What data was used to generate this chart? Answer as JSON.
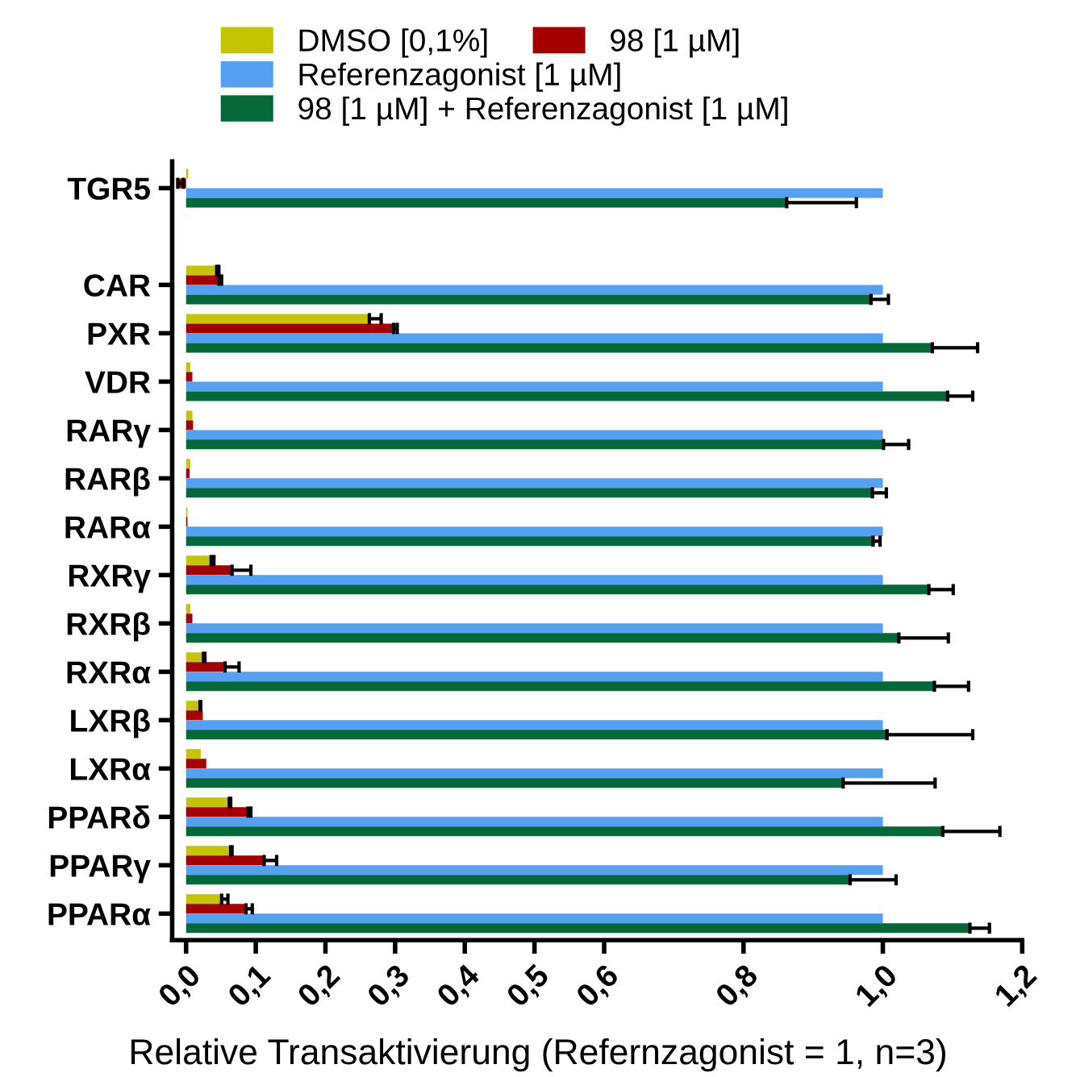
{
  "chart_data": {
    "type": "bar",
    "orientation": "horizontal",
    "legend": "top",
    "xlabel": "Relative Transaktivierung (Refernzagonist = 1, n=3)",
    "categories": [
      "TGR5",
      null,
      "CAR",
      "PXR",
      "VDR",
      "RARγ",
      "RARβ",
      "RARα",
      "RXRγ",
      "RXRβ",
      "RXRα",
      "LXRβ",
      "LXRα",
      "PPARδ",
      "PPARγ",
      "PPARα"
    ],
    "xlim": [
      -0.02,
      1.2
    ],
    "xticks": [
      {
        "value": 0,
        "label": "0,0"
      },
      {
        "value": 0.1,
        "label": "0,1"
      },
      {
        "value": 0.2,
        "label": "0,2"
      },
      {
        "value": 0.3,
        "label": "0,3"
      },
      {
        "value": 0.4,
        "label": "0,4"
      },
      {
        "value": 0.5,
        "label": "0,5"
      },
      {
        "value": 0.6,
        "label": "0,6"
      },
      {
        "value": 0.8,
        "label": "0,8"
      },
      {
        "value": 1.0,
        "label": "1,0"
      },
      {
        "value": 1.2,
        "label": "1,2"
      }
    ],
    "series": [
      {
        "name": "DMSO [0,1%]",
        "color": "#c4c400",
        "values": [
          0.003,
          null,
          0.044,
          0.263,
          0.006,
          0.009,
          0.006,
          0.002,
          0.036,
          0.006,
          0.025,
          0.02,
          0.021,
          0.062,
          0.064,
          0.051
        ],
        "errors": [
          null,
          null,
          [
            0.044,
            0.047
          ],
          [
            0.263,
            0.28
          ],
          null,
          null,
          null,
          null,
          [
            0.036,
            0.04
          ],
          null,
          [
            0.025,
            0.027
          ],
          [
            0.02,
            0.021
          ],
          null,
          [
            0.062,
            0.064
          ],
          [
            0.064,
            0.066
          ],
          [
            0.051,
            0.06
          ]
        ]
      },
      {
        "name": "98 [1 µM]",
        "color": "#a50000",
        "values": [
          -0.012,
          null,
          0.047,
          0.298,
          0.009,
          0.01,
          0.005,
          0.002,
          0.066,
          0.009,
          0.056,
          0.024,
          0.029,
          0.089,
          0.112,
          0.086
        ],
        "errors": [
          [
            -0.012,
            -0.004
          ],
          null,
          [
            0.047,
            0.051
          ],
          [
            0.298,
            0.303
          ],
          null,
          null,
          null,
          null,
          [
            0.066,
            0.093
          ],
          null,
          [
            0.056,
            0.076
          ],
          null,
          null,
          [
            0.089,
            0.093
          ],
          [
            0.112,
            0.13
          ],
          [
            0.086,
            0.095
          ]
        ]
      },
      {
        "name": "Referenzagonist [1 µM]",
        "color": "#55a0f0",
        "values": [
          1.0,
          null,
          1.0,
          1.0,
          1.0,
          1.0,
          1.0,
          1.0,
          1.0,
          1.0,
          1.0,
          1.0,
          1.0,
          1.0,
          1.0,
          1.0
        ]
      },
      {
        "name": "98 [1 µM] + Referenzagonist [1 µM]",
        "color": "#066838",
        "values": [
          0.862,
          null,
          0.983,
          1.071,
          1.093,
          1.001,
          0.985,
          0.986,
          1.066,
          1.023,
          1.074,
          1.006,
          0.943,
          1.086,
          0.953,
          1.125
        ],
        "errors": [
          [
            0.862,
            0.962
          ],
          null,
          [
            0.983,
            1.008
          ],
          [
            1.071,
            1.136
          ],
          [
            1.093,
            1.129
          ],
          [
            1.001,
            1.037
          ],
          [
            0.985,
            1.005
          ],
          [
            0.986,
            0.996
          ],
          [
            1.066,
            1.101
          ],
          [
            1.023,
            1.094
          ],
          [
            1.074,
            1.123
          ],
          [
            1.006,
            1.129
          ],
          [
            0.943,
            1.075
          ],
          [
            1.086,
            1.168
          ],
          [
            0.953,
            1.019
          ],
          [
            1.125,
            1.153
          ]
        ]
      }
    ]
  }
}
